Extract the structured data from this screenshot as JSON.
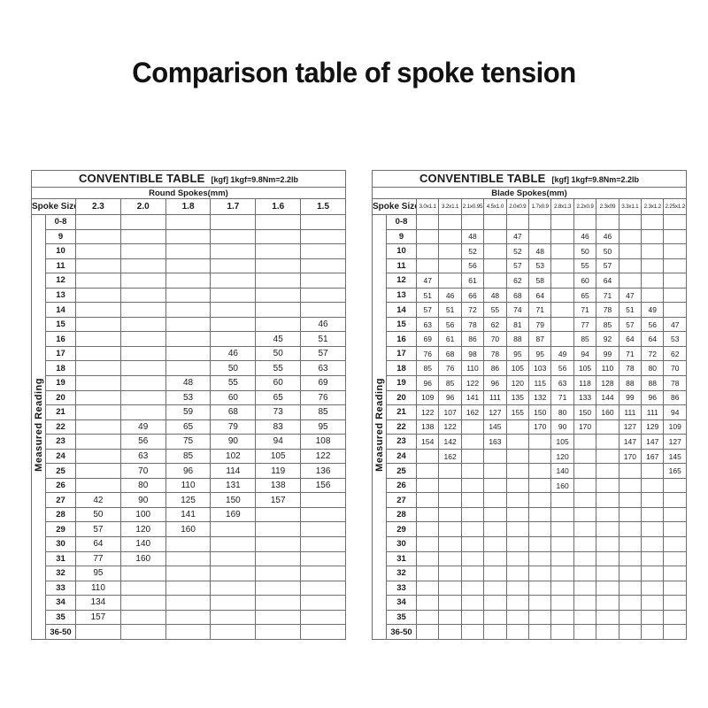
{
  "page": {
    "title": "Comparison table of spoke tension",
    "background": "#ffffff",
    "text_color": "#1b1b1b",
    "grid_color": "#6f6f6f"
  },
  "tables": [
    {
      "name": "round-spokes",
      "header": {
        "title": "CONVENTIBLE TABLE",
        "note": "[kgf] 1kgf=9.8Nm=2.2lb"
      },
      "subtitle": "Round Spokes(mm)",
      "corner_label": "Spoke Size",
      "side_label": "Measured Reading",
      "columns": [
        "2.3",
        "2.0",
        "1.8",
        "1.7",
        "1.6",
        "1.5"
      ],
      "rows": [
        {
          "label": "0-8",
          "values": [
            "",
            "",
            "",
            "",
            "",
            ""
          ]
        },
        {
          "label": "9",
          "values": [
            "",
            "",
            "",
            "",
            "",
            ""
          ]
        },
        {
          "label": "10",
          "values": [
            "",
            "",
            "",
            "",
            "",
            ""
          ]
        },
        {
          "label": "11",
          "values": [
            "",
            "",
            "",
            "",
            "",
            ""
          ]
        },
        {
          "label": "12",
          "values": [
            "",
            "",
            "",
            "",
            "",
            ""
          ]
        },
        {
          "label": "13",
          "values": [
            "",
            "",
            "",
            "",
            "",
            ""
          ]
        },
        {
          "label": "14",
          "values": [
            "",
            "",
            "",
            "",
            "",
            ""
          ]
        },
        {
          "label": "15",
          "values": [
            "",
            "",
            "",
            "",
            "",
            "46"
          ]
        },
        {
          "label": "16",
          "values": [
            "",
            "",
            "",
            "",
            "45",
            "51"
          ]
        },
        {
          "label": "17",
          "values": [
            "",
            "",
            "",
            "46",
            "50",
            "57"
          ]
        },
        {
          "label": "18",
          "values": [
            "",
            "",
            "",
            "50",
            "55",
            "63"
          ]
        },
        {
          "label": "19",
          "values": [
            "",
            "",
            "48",
            "55",
            "60",
            "69"
          ]
        },
        {
          "label": "20",
          "values": [
            "",
            "",
            "53",
            "60",
            "65",
            "76"
          ]
        },
        {
          "label": "21",
          "values": [
            "",
            "",
            "59",
            "68",
            "73",
            "85"
          ]
        },
        {
          "label": "22",
          "values": [
            "",
            "49",
            "65",
            "79",
            "83",
            "95"
          ]
        },
        {
          "label": "23",
          "values": [
            "",
            "56",
            "75",
            "90",
            "94",
            "108"
          ]
        },
        {
          "label": "24",
          "values": [
            "",
            "63",
            "85",
            "102",
            "105",
            "122"
          ]
        },
        {
          "label": "25",
          "values": [
            "",
            "70",
            "96",
            "114",
            "119",
            "136"
          ]
        },
        {
          "label": "26",
          "values": [
            "",
            "80",
            "110",
            "131",
            "138",
            "156"
          ]
        },
        {
          "label": "27",
          "values": [
            "42",
            "90",
            "125",
            "150",
            "157",
            ""
          ]
        },
        {
          "label": "28",
          "values": [
            "50",
            "100",
            "141",
            "169",
            "",
            ""
          ]
        },
        {
          "label": "29",
          "values": [
            "57",
            "120",
            "160",
            "",
            "",
            ""
          ]
        },
        {
          "label": "30",
          "values": [
            "64",
            "140",
            "",
            "",
            "",
            ""
          ]
        },
        {
          "label": "31",
          "values": [
            "77",
            "160",
            "",
            "",
            "",
            ""
          ]
        },
        {
          "label": "32",
          "values": [
            "95",
            "",
            "",
            "",
            "",
            ""
          ]
        },
        {
          "label": "33",
          "values": [
            "110",
            "",
            "",
            "",
            "",
            ""
          ]
        },
        {
          "label": "34",
          "values": [
            "134",
            "",
            "",
            "",
            "",
            ""
          ]
        },
        {
          "label": "35",
          "values": [
            "157",
            "",
            "",
            "",
            "",
            ""
          ]
        },
        {
          "label": "36-50",
          "values": [
            "",
            "",
            "",
            "",
            "",
            ""
          ]
        }
      ]
    },
    {
      "name": "blade-spokes",
      "header": {
        "title": "CONVENTIBLE TABLE",
        "note": "[kgf] 1kgf=9.8Nm=2.2lb"
      },
      "subtitle": "Blade Spokes(mm)",
      "corner_label": "Spoke Size",
      "side_label": "Measured Reading",
      "columns": [
        "3.0x1.1",
        "3.2x1.1",
        "2.1x0.95",
        "4.5x1.0",
        "2.0x0.9",
        "1.7x0.9",
        "2.8x1.3",
        "2.2x0.9",
        "2.3x09",
        "3.3x1.1",
        "2.3x1.2",
        "2.25x1.2"
      ],
      "rows": [
        {
          "label": "0-8",
          "values": [
            "",
            "",
            "",
            "",
            "",
            "",
            "",
            "",
            "",
            "",
            "",
            ""
          ]
        },
        {
          "label": "9",
          "values": [
            "",
            "",
            "48",
            "",
            "47",
            "",
            "",
            "46",
            "46",
            "",
            "",
            ""
          ]
        },
        {
          "label": "10",
          "values": [
            "",
            "",
            "52",
            "",
            "52",
            "48",
            "",
            "50",
            "50",
            "",
            "",
            ""
          ]
        },
        {
          "label": "11",
          "values": [
            "",
            "",
            "56",
            "",
            "57",
            "53",
            "",
            "55",
            "57",
            "",
            "",
            ""
          ]
        },
        {
          "label": "12",
          "values": [
            "47",
            "",
            "61",
            "",
            "62",
            "58",
            "",
            "60",
            "64",
            "",
            "",
            ""
          ]
        },
        {
          "label": "13",
          "values": [
            "51",
            "46",
            "66",
            "48",
            "68",
            "64",
            "",
            "65",
            "71",
            "47",
            "",
            ""
          ]
        },
        {
          "label": "14",
          "values": [
            "57",
            "51",
            "72",
            "55",
            "74",
            "71",
            "",
            "71",
            "78",
            "51",
            "49",
            ""
          ]
        },
        {
          "label": "15",
          "values": [
            "63",
            "56",
            "78",
            "62",
            "81",
            "79",
            "",
            "77",
            "85",
            "57",
            "56",
            "47"
          ]
        },
        {
          "label": "16",
          "values": [
            "69",
            "61",
            "86",
            "70",
            "88",
            "87",
            "",
            "85",
            "92",
            "64",
            "64",
            "53"
          ]
        },
        {
          "label": "17",
          "values": [
            "76",
            "68",
            "98",
            "78",
            "95",
            "95",
            "49",
            "94",
            "99",
            "71",
            "72",
            "62"
          ]
        },
        {
          "label": "18",
          "values": [
            "85",
            "76",
            "110",
            "86",
            "105",
            "103",
            "56",
            "105",
            "110",
            "78",
            "80",
            "70"
          ]
        },
        {
          "label": "19",
          "values": [
            "96",
            "85",
            "122",
            "96",
            "120",
            "115",
            "63",
            "118",
            "128",
            "88",
            "88",
            "78"
          ]
        },
        {
          "label": "20",
          "values": [
            "109",
            "96",
            "141",
            "111",
            "135",
            "132",
            "71",
            "133",
            "144",
            "99",
            "96",
            "86"
          ]
        },
        {
          "label": "21",
          "values": [
            "122",
            "107",
            "162",
            "127",
            "155",
            "150",
            "80",
            "150",
            "160",
            "111",
            "111",
            "94"
          ]
        },
        {
          "label": "22",
          "values": [
            "138",
            "122",
            "",
            "145",
            "",
            "170",
            "90",
            "170",
            "",
            "127",
            "129",
            "109"
          ]
        },
        {
          "label": "23",
          "values": [
            "154",
            "142",
            "",
            "163",
            "",
            "",
            "105",
            "",
            "",
            "147",
            "147",
            "127"
          ]
        },
        {
          "label": "24",
          "values": [
            "",
            "162",
            "",
            "",
            "",
            "",
            "120",
            "",
            "",
            "170",
            "167",
            "145"
          ]
        },
        {
          "label": "25",
          "values": [
            "",
            "",
            "",
            "",
            "",
            "",
            "140",
            "",
            "",
            "",
            "",
            "165"
          ]
        },
        {
          "label": "26",
          "values": [
            "",
            "",
            "",
            "",
            "",
            "",
            "160",
            "",
            "",
            "",
            "",
            ""
          ]
        },
        {
          "label": "27",
          "values": [
            "",
            "",
            "",
            "",
            "",
            "",
            "",
            "",
            "",
            "",
            "",
            ""
          ]
        },
        {
          "label": "28",
          "values": [
            "",
            "",
            "",
            "",
            "",
            "",
            "",
            "",
            "",
            "",
            "",
            ""
          ]
        },
        {
          "label": "29",
          "values": [
            "",
            "",
            "",
            "",
            "",
            "",
            "",
            "",
            "",
            "",
            "",
            ""
          ]
        },
        {
          "label": "30",
          "values": [
            "",
            "",
            "",
            "",
            "",
            "",
            "",
            "",
            "",
            "",
            "",
            ""
          ]
        },
        {
          "label": "31",
          "values": [
            "",
            "",
            "",
            "",
            "",
            "",
            "",
            "",
            "",
            "",
            "",
            ""
          ]
        },
        {
          "label": "32",
          "values": [
            "",
            "",
            "",
            "",
            "",
            "",
            "",
            "",
            "",
            "",
            "",
            ""
          ]
        },
        {
          "label": "33",
          "values": [
            "",
            "",
            "",
            "",
            "",
            "",
            "",
            "",
            "",
            "",
            "",
            ""
          ]
        },
        {
          "label": "34",
          "values": [
            "",
            "",
            "",
            "",
            "",
            "",
            "",
            "",
            "",
            "",
            "",
            ""
          ]
        },
        {
          "label": "35",
          "values": [
            "",
            "",
            "",
            "",
            "",
            "",
            "",
            "",
            "",
            "",
            "",
            ""
          ]
        },
        {
          "label": "36-50",
          "values": [
            "",
            "",
            "",
            "",
            "",
            "",
            "",
            "",
            "",
            "",
            "",
            ""
          ]
        }
      ]
    }
  ]
}
